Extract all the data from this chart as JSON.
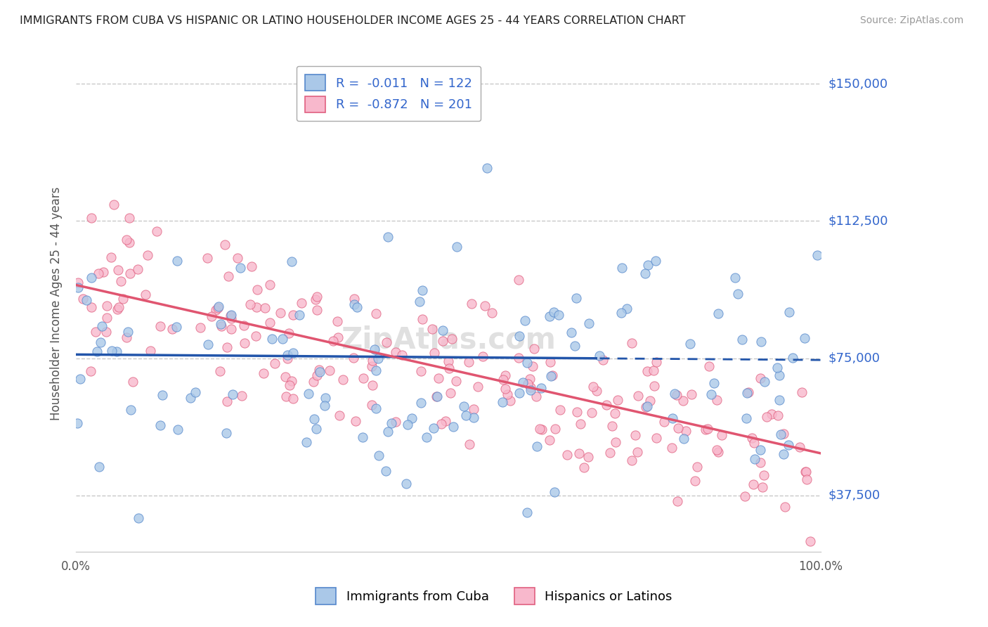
{
  "title": "IMMIGRANTS FROM CUBA VS HISPANIC OR LATINO HOUSEHOLDER INCOME AGES 25 - 44 YEARS CORRELATION CHART",
  "source": "Source: ZipAtlas.com",
  "ylabel": "Householder Income Ages 25 - 44 years",
  "xlim": [
    0,
    100
  ],
  "ylim": [
    22000,
    158000
  ],
  "yticks": [
    37500,
    75000,
    112500,
    150000
  ],
  "ytick_labels": [
    "$37,500",
    "$75,000",
    "$112,500",
    "$150,000"
  ],
  "xtick_labels": [
    "0.0%",
    "100.0%"
  ],
  "grid_color": "#c8c8c8",
  "background_color": "#ffffff",
  "series1": {
    "name": "Immigrants from Cuba",
    "color": "#aac8e8",
    "edge_color": "#5588cc",
    "R": -0.011,
    "N": 122,
    "trend_color": "#2255aa",
    "trend_style": "-"
  },
  "series2": {
    "name": "Hispanics or Latinos",
    "color": "#f8b8cc",
    "edge_color": "#e06080",
    "R": -0.872,
    "N": 201,
    "trend_color": "#e05570",
    "trend_style": "-"
  },
  "watermark": "ZipAtlas.com",
  "seed1": 12,
  "seed2": 55,
  "blue_trend_intercept": 76000,
  "blue_trend_slope": -15,
  "pink_trend_intercept": 95000,
  "pink_trend_slope": -460
}
